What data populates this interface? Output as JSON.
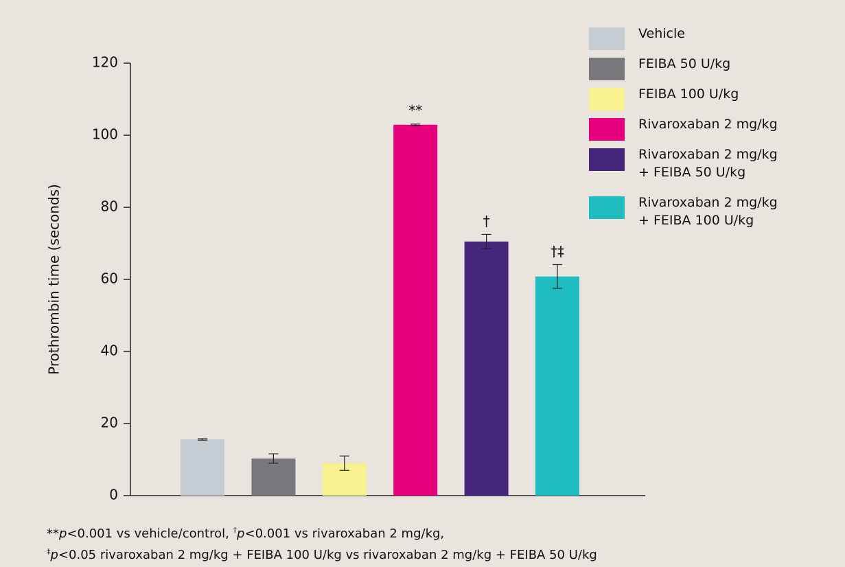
{
  "chart_data": {
    "type": "bar",
    "y_label": "Prothrombin time (seconds)",
    "categories": [
      "Vehicle",
      "FEIBA 50 U/kg",
      "FEIBA 100 U/kg",
      "Rivaroxaban 2 mg/kg",
      "Rivaroxaban 2 mg/kg\n+ FEIBA 50 U/kg",
      "Rivaroxaban 2 mg/kg\n+ FEIBA 100 U/kg"
    ],
    "values": [
      15.6,
      10.3,
      9.0,
      102.9,
      70.5,
      60.8
    ],
    "errors": [
      0.2,
      1.3,
      2.0,
      0.2,
      2.0,
      3.3
    ],
    "colors": [
      "#c5cdd3",
      "#78787c",
      "#f7f28f",
      "#e6007e",
      "#46267d",
      "#1fbdbf"
    ],
    "annotations": [
      null,
      null,
      null,
      "**",
      "†",
      "†‡"
    ],
    "ylim": [
      0,
      120
    ],
    "yticks": [
      0,
      20,
      40,
      60,
      80,
      100,
      120
    ],
    "legend": "top-right",
    "footnote": [
      [
        {
          "text": "**"
        },
        {
          "text": "p",
          "style": "italic"
        },
        {
          "text": "<0.001 vs vehicle/control, "
        },
        {
          "text": "†",
          "style": "sup"
        },
        {
          "text": "p",
          "style": "italic"
        },
        {
          "text": "<0.001 vs rivaroxaban 2 mg/kg,"
        }
      ],
      [
        {
          "text": "‡",
          "style": "sup"
        },
        {
          "text": "p",
          "style": "italic"
        },
        {
          "text": "<0.05 rivaroxaban 2 mg/kg + FEIBA 100 U/kg vs rivaroxaban 2 mg/kg + FEIBA 50 U/kg"
        }
      ]
    ]
  }
}
